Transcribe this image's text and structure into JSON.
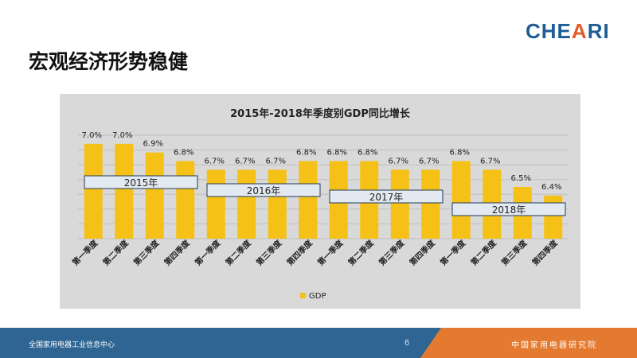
{
  "slide": {
    "logo_main": "CHE",
    "logo_accent": "A",
    "logo_end": "RI",
    "title": "宏观经济形势稳健",
    "page_number": "6",
    "footer_left": "全国家用电器工业信息中心",
    "footer_right": "中国家用电器研究院"
  },
  "colors": {
    "bar": "#f5c116",
    "panel": "#d9d9d9",
    "grid": "#bfbfbf",
    "year_box_fill": "#e3e9f1",
    "year_box_border": "#1f3b5a"
  },
  "chart_data": {
    "type": "bar",
    "title": "2015年-2018年季度别GDP同比增长",
    "categories": [
      "第一季度",
      "第二季度",
      "第三季度",
      "第四季度",
      "第一季度",
      "第二季度",
      "第三季度",
      "第四季度",
      "第一季度",
      "第二季度",
      "第三季度",
      "第四季度",
      "第一季度",
      "第二季度",
      "第三季度",
      "第四季度"
    ],
    "series": [
      {
        "name": "GDP",
        "values": [
          7.0,
          7.0,
          6.9,
          6.8,
          6.7,
          6.7,
          6.7,
          6.8,
          6.8,
          6.8,
          6.7,
          6.7,
          6.8,
          6.7,
          6.5,
          6.4
        ]
      }
    ],
    "value_labels": [
      "7.0%",
      "7.0%",
      "6.9%",
      "6.8%",
      "6.7%",
      "6.7%",
      "6.7%",
      "6.8%",
      "6.8%",
      "6.8%",
      "6.7%",
      "6.7%",
      "6.8%",
      "6.7%",
      "6.5%",
      "6.4%"
    ],
    "groups": [
      {
        "label": "2015年",
        "start": 0,
        "end": 3
      },
      {
        "label": "2016年",
        "start": 4,
        "end": 7
      },
      {
        "label": "2017年",
        "start": 8,
        "end": 11
      },
      {
        "label": "2018年",
        "start": 12,
        "end": 15
      }
    ],
    "ylim": [
      5.9,
      7.1
    ],
    "grid": true,
    "legend": "bottom",
    "xlabel": "",
    "ylabel": ""
  }
}
